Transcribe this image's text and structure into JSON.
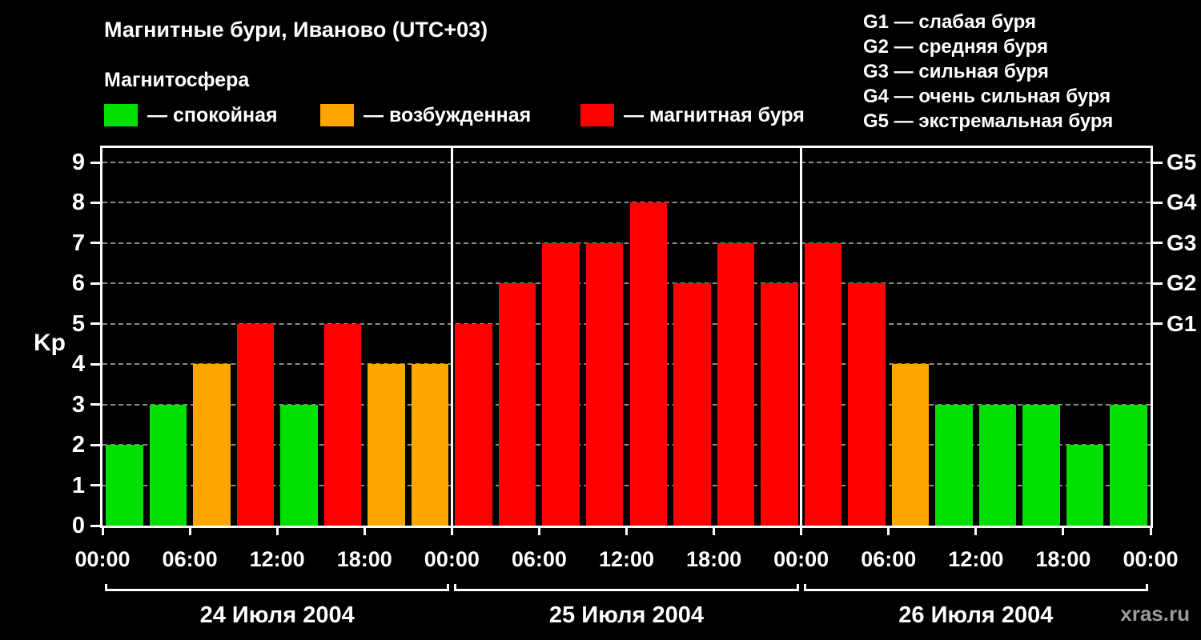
{
  "title": "Магнитные бури, Иваново (UTC+03)",
  "subtitle": "Магнитосфера",
  "legend": [
    {
      "name": "quiet",
      "label": "— спокойная",
      "color": "#00e000"
    },
    {
      "name": "excited",
      "label": "— возбужденная",
      "color": "#ffa500"
    },
    {
      "name": "storm",
      "label": "— магнитная буря",
      "color": "#ff0000"
    }
  ],
  "storm_scale": [
    "G1 — слабая буря",
    "G2 — средняя буря",
    "G3 — сильная буря",
    "G4 — очень сильная буря",
    "G5 — экстремальная буря"
  ],
  "ylabel": "Kp",
  "watermark": "xras.ru",
  "chart_data": {
    "type": "bar",
    "title": "Магнитные бури, Иваново (UTC+03)",
    "ylabel": "Kp",
    "ylim": [
      0,
      9.3
    ],
    "yticks": [
      0,
      1,
      2,
      3,
      4,
      5,
      6,
      7,
      8,
      9
    ],
    "grid": "dashed horizontal at integer Kp levels",
    "right_axis": [
      {
        "label": "G1",
        "value": 5
      },
      {
        "label": "G2",
        "value": 6
      },
      {
        "label": "G3",
        "value": 7
      },
      {
        "label": "G4",
        "value": 8
      },
      {
        "label": "G5",
        "value": 9
      }
    ],
    "time_labels": [
      "00:00",
      "06:00",
      "12:00",
      "18:00"
    ],
    "end_time_label": "00:00",
    "bars_per_day": 8,
    "bar_interval_hours": 3,
    "days": [
      {
        "date": "24 Июля 2004",
        "values": [
          2,
          3,
          4,
          5,
          3,
          5,
          4,
          4
        ]
      },
      {
        "date": "25 Июля 2004",
        "values": [
          5,
          6,
          7,
          7,
          8,
          6,
          7,
          6
        ]
      },
      {
        "date": "26 Июля 2004",
        "values": [
          7,
          6,
          4,
          3,
          3,
          3,
          2,
          3
        ]
      }
    ],
    "palette": {
      "quiet": "#00e000",
      "excited": "#ffa500",
      "storm": "#ff0000"
    },
    "color_rule": {
      "quiet_max_kp": 3,
      "excited_kp": 4,
      "storm_min_kp": 5
    }
  }
}
